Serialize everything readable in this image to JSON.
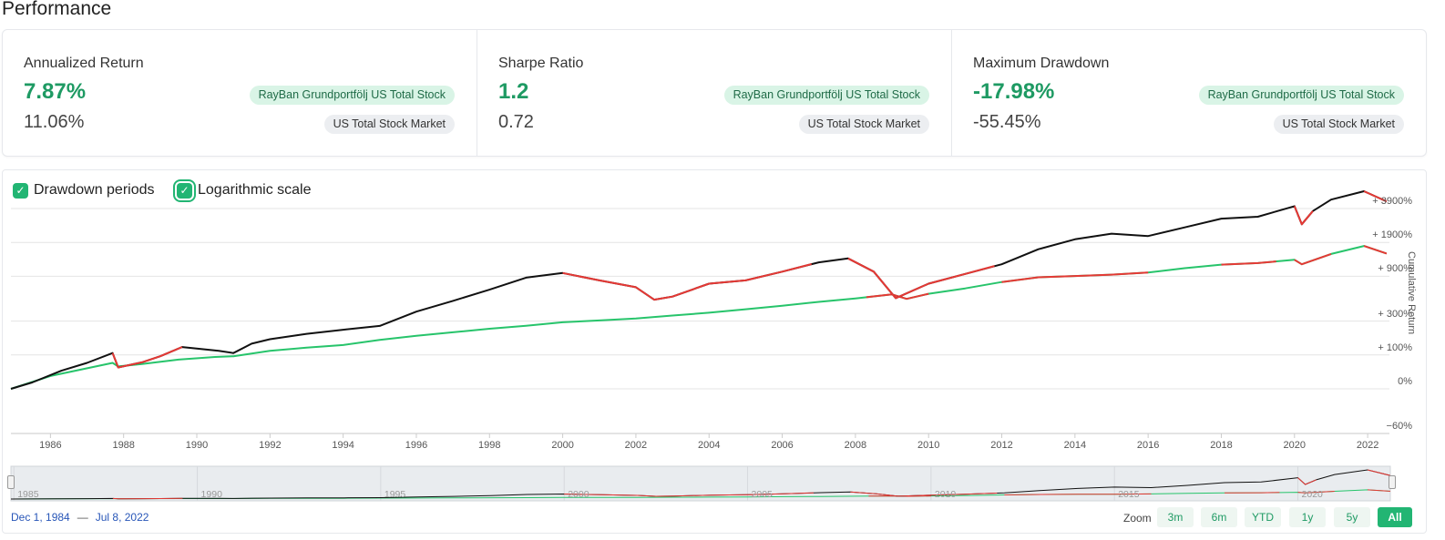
{
  "page": {
    "title": "Performance"
  },
  "metrics": [
    {
      "label": "Annualized Return",
      "primary_value": "7.87%",
      "primary_badge": "RayBan Grundportfölj US Total Stock",
      "secondary_value": "11.06%",
      "secondary_badge": "US Total Stock Market"
    },
    {
      "label": "Sharpe Ratio",
      "primary_value": "1.2",
      "primary_badge": "RayBan Grundportfölj US Total Stock",
      "secondary_value": "0.72",
      "secondary_badge": "US Total Stock Market"
    },
    {
      "label": "Maximum Drawdown",
      "primary_value": "-17.98%",
      "primary_badge": "RayBan Grundportfölj US Total Stock",
      "secondary_value": "-55.45%",
      "secondary_badge": "US Total Stock Market"
    }
  ],
  "controls": {
    "drawdown_label": "Drawdown periods",
    "drawdown_checked": true,
    "log_label": "Logarithmic scale",
    "log_checked": true,
    "check_icon": "check-icon"
  },
  "chart_data": {
    "type": "line",
    "ylabel": "Cumulative Return",
    "y_scale": "log",
    "y_ticks": [
      "+ 3900%",
      "+ 1900%",
      "+ 900%",
      "+ 300%",
      "+ 100%",
      "0%",
      "−60%"
    ],
    "y_tick_values": [
      3900,
      1900,
      900,
      300,
      100,
      0,
      -60
    ],
    "x_ticks": [
      "1986",
      "1988",
      "1990",
      "1992",
      "1994",
      "1996",
      "1998",
      "2000",
      "2002",
      "2004",
      "2006",
      "2008",
      "2010",
      "2012",
      "2014",
      "2016",
      "2018",
      "2020",
      "2022"
    ],
    "x_range": [
      1984.92,
      2022.52
    ],
    "grid": true,
    "colors": {
      "series_a": "#111111",
      "series_b": "#27c46b",
      "drawdown": "#e53935"
    },
    "series": [
      {
        "color": "#111111",
        "points": [
          [
            1984.92,
            0
          ],
          [
            1985.5,
            14
          ],
          [
            1986.3,
            45
          ],
          [
            1987.0,
            70
          ],
          [
            1987.7,
            108
          ],
          [
            1987.85,
            55
          ],
          [
            1988.5,
            72
          ],
          [
            1989.0,
            95
          ],
          [
            1989.6,
            135
          ],
          [
            1990.6,
            118
          ],
          [
            1991.0,
            108
          ],
          [
            1991.5,
            152
          ],
          [
            1992.0,
            176
          ],
          [
            1993.0,
            208
          ],
          [
            1994.0,
            235
          ],
          [
            1995.0,
            262
          ],
          [
            1996.0,
            385
          ],
          [
            1997.0,
            505
          ],
          [
            1998.0,
            660
          ],
          [
            1999.0,
            872
          ],
          [
            2000.0,
            970
          ],
          [
            2001.0,
            820
          ],
          [
            2002.0,
            700
          ],
          [
            2002.5,
            520
          ],
          [
            2003.0,
            560
          ],
          [
            2004.0,
            760
          ],
          [
            2005.0,
            820
          ],
          [
            2006.0,
            1000
          ],
          [
            2007.0,
            1230
          ],
          [
            2007.8,
            1340
          ],
          [
            2008.5,
            1000
          ],
          [
            2009.1,
            540
          ],
          [
            2010.0,
            760
          ],
          [
            2011.0,
            950
          ],
          [
            2012.0,
            1180
          ],
          [
            2013.0,
            1640
          ],
          [
            2014.0,
            2030
          ],
          [
            2015.0,
            2290
          ],
          [
            2016.0,
            2180
          ],
          [
            2017.0,
            2620
          ],
          [
            2018.0,
            3150
          ],
          [
            2019.0,
            3280
          ],
          [
            2020.0,
            4100
          ],
          [
            2020.2,
            2800
          ],
          [
            2020.5,
            3700
          ],
          [
            2021.0,
            4700
          ],
          [
            2021.9,
            5600
          ],
          [
            2022.5,
            4550
          ]
        ],
        "drawdown_ranges": [
          [
            1987.7,
            1989.6
          ],
          [
            2000.0,
            2006.8
          ],
          [
            2007.8,
            2010.0
          ],
          [
            2010.0,
            2011.8
          ],
          [
            2020.0,
            2020.5
          ],
          [
            2021.9,
            2022.52
          ]
        ]
      },
      {
        "color": "#27c46b",
        "points": [
          [
            1984.92,
            0
          ],
          [
            1986.0,
            30
          ],
          [
            1987.7,
            70
          ],
          [
            1987.85,
            58
          ],
          [
            1988.5,
            66
          ],
          [
            1989.5,
            82
          ],
          [
            1990.5,
            92
          ],
          [
            1991.0,
            95
          ],
          [
            1992.0,
            118
          ],
          [
            1993.0,
            132
          ],
          [
            1994.0,
            145
          ],
          [
            1995.0,
            172
          ],
          [
            1996.0,
            196
          ],
          [
            1997.0,
            218
          ],
          [
            1998.0,
            242
          ],
          [
            1999.0,
            263
          ],
          [
            2000.0,
            290
          ],
          [
            2001.0,
            305
          ],
          [
            2002.0,
            322
          ],
          [
            2003.0,
            348
          ],
          [
            2004.0,
            375
          ],
          [
            2005.0,
            410
          ],
          [
            2006.0,
            448
          ],
          [
            2007.0,
            492
          ],
          [
            2008.0,
            535
          ],
          [
            2009.0,
            590
          ],
          [
            2009.4,
            530
          ],
          [
            2010.0,
            600
          ],
          [
            2011.0,
            680
          ],
          [
            2012.0,
            790
          ],
          [
            2013.0,
            880
          ],
          [
            2014.0,
            905
          ],
          [
            2015.0,
            935
          ],
          [
            2016.0,
            980
          ],
          [
            2017.0,
            1080
          ],
          [
            2018.0,
            1170
          ],
          [
            2019.0,
            1210
          ],
          [
            2020.0,
            1300
          ],
          [
            2020.2,
            1180
          ],
          [
            2021.0,
            1480
          ],
          [
            2021.9,
            1760
          ],
          [
            2022.5,
            1500
          ]
        ],
        "drawdown_ranges": [
          [
            2008.3,
            2010.0
          ],
          [
            2012.0,
            2016.0
          ],
          [
            2018.0,
            2019.5
          ],
          [
            2020.0,
            2021.0
          ],
          [
            2021.9,
            2022.52
          ]
        ]
      }
    ]
  },
  "navigator": {
    "ticks": [
      "1985",
      "1990",
      "1995",
      "2000",
      "2005",
      "2010",
      "2015",
      "2020"
    ],
    "tick_years": [
      1985,
      1990,
      1995,
      2000,
      2005,
      2010,
      2015,
      2020
    ]
  },
  "range": {
    "start": "Dec 1, 1984",
    "separator": "—",
    "end": "Jul 8, 2022"
  },
  "zoom": {
    "label": "Zoom",
    "buttons": [
      "3m",
      "6m",
      "YTD",
      "1y",
      "5y",
      "All"
    ],
    "active": "All"
  }
}
